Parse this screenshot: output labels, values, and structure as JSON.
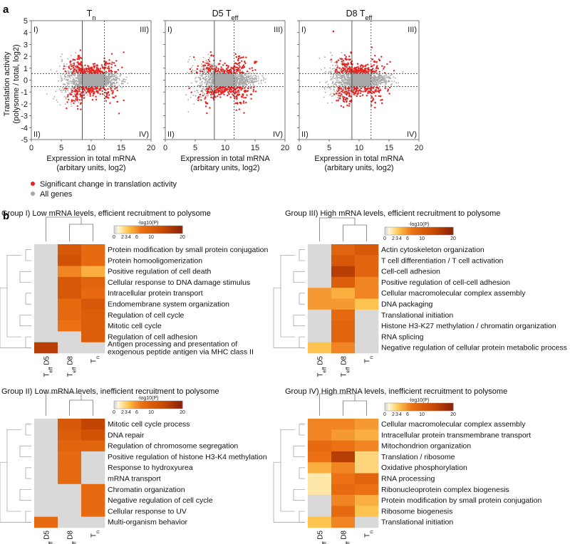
{
  "panel_a": {
    "letter": "a",
    "y_axis": {
      "label_line1": "Translation activity",
      "label_line2": "(polysome / total, log2)",
      "ticks": [
        "5",
        "4",
        "3",
        "2",
        "1",
        "0",
        "-1",
        "-2",
        "-3",
        "-4",
        "-5"
      ]
    },
    "x_axis": {
      "label_line1": "Expression in total mRNA",
      "label_line2": "(arbitary units, log2)",
      "ticks": [
        "0",
        "5",
        "10",
        "15",
        "20"
      ]
    },
    "plots": [
      {
        "title_main": "T",
        "title_sub": "n"
      },
      {
        "title_main": "D5 T",
        "title_sub": "eff"
      },
      {
        "title_main": "D8 T",
        "title_sub": "eff"
      }
    ],
    "quadrants": {
      "q1": "I)",
      "q2": "II)",
      "q3": "III)",
      "q4": "IV)"
    },
    "legend": {
      "significant": "Significant change in translation activity",
      "all": "All genes"
    },
    "colors": {
      "significant": "#e8231f",
      "all": "#a8a8a8"
    }
  },
  "panel_b": {
    "letter": "b",
    "colorbar": {
      "title": "-log10(P)",
      "ticks": [
        "0",
        "2",
        "3",
        "4",
        "6",
        "10",
        "20"
      ]
    },
    "columns": [
      {
        "main": "T",
        "sub": "eff",
        "suffix": " D5"
      },
      {
        "main": "T",
        "sub": "eff",
        "suffix": " D8"
      },
      {
        "main": "T",
        "sub": "n",
        "suffix": ""
      }
    ],
    "groups": [
      {
        "title": "Group I) Low mRNA levels, efficient recruitment to polysome",
        "terms": [
          "Protein modification by small protein conjugation",
          "Protein homooligomerization",
          "Positive regulation of cell death",
          "Cellular response to DNA damage stimulus",
          "Intracellular protein transport",
          "Endomembrane system organization",
          "Regulation of cell cycle",
          "Mitotic cell cycle",
          "Regulation of cell adhesion",
          "Antigen processing and presentation of exogenous peptide antigen via MHC class II"
        ],
        "values": [
          [
            0,
            12,
            9
          ],
          [
            0,
            13,
            9
          ],
          [
            0,
            7,
            5
          ],
          [
            0,
            12,
            10
          ],
          [
            0,
            12,
            9
          ],
          [
            0,
            9,
            12
          ],
          [
            0,
            9,
            11
          ],
          [
            0,
            8,
            11
          ],
          [
            0,
            0,
            11
          ],
          [
            16,
            0,
            0
          ]
        ]
      },
      {
        "title": "Group III) High mRNA levels, efficient recruitment to polysome",
        "terms": [
          "Actin cytoskeleton organization",
          "T cell differentiation / T cell activation",
          "Cell-cell adhesion",
          "Positive regulation of cell-cell adhesion",
          "Cellular macromolecular complex assembly",
          "DNA packaging",
          "Translational initiation",
          "Histone H3-K27 methylation / chromatin organization",
          "RNA splicing",
          "Negative regulation of cellular protein metabolic process"
        ],
        "values": [
          [
            0,
            10,
            12
          ],
          [
            0,
            12,
            10
          ],
          [
            0,
            16,
            10
          ],
          [
            0,
            11,
            7
          ],
          [
            6,
            5,
            7
          ],
          [
            6,
            6,
            4
          ],
          [
            0,
            9,
            0
          ],
          [
            0,
            10,
            0
          ],
          [
            0,
            10,
            0
          ],
          [
            4,
            7,
            0
          ]
        ]
      },
      {
        "title": "Group II) Low mRNA levels, inefficient recruitment to polysome",
        "terms": [
          "Mitotic cell cycle process",
          "DNA repair",
          "Regulation of chromosome segregation",
          "Positive regulation of histone H3-K4 methylation",
          "Response to hydroxyurea",
          "mRNA transport",
          "Chromatin organization",
          "Negative regulation of cell cycle",
          "Cellular response to UV",
          "Multi-organism behavior"
        ],
        "values": [
          [
            0,
            12,
            15
          ],
          [
            0,
            11,
            13
          ],
          [
            0,
            10,
            10
          ],
          [
            0,
            9,
            0
          ],
          [
            0,
            9,
            0
          ],
          [
            0,
            9,
            0
          ],
          [
            0,
            0,
            9
          ],
          [
            0,
            0,
            9
          ],
          [
            0,
            0,
            9
          ],
          [
            9,
            0,
            0
          ]
        ]
      },
      {
        "title": "Group IV) High mRNA levels, inefficient recruitment to polysome",
        "terms": [
          "Cellular macromolecular complex assembly",
          "Intracellular protein transmembrane transport",
          "Mitochondrion organization",
          "Translation / ribosome",
          "Oxidative phosphorylation",
          "RNA processing",
          "Ribonucleoprotein complex biogenesis",
          "Protein modification by small protein conjugation",
          "Ribosome biogenesis",
          "Translational initiation"
        ],
        "values": [
          [
            7,
            7,
            6
          ],
          [
            7,
            6,
            5
          ],
          [
            9,
            8,
            7
          ],
          [
            8,
            16,
            3
          ],
          [
            5,
            7,
            3
          ],
          [
            2,
            8,
            10
          ],
          [
            2,
            9,
            8
          ],
          [
            0,
            7,
            5
          ],
          [
            0,
            9,
            4
          ],
          [
            4,
            7,
            0
          ]
        ]
      }
    ]
  }
}
